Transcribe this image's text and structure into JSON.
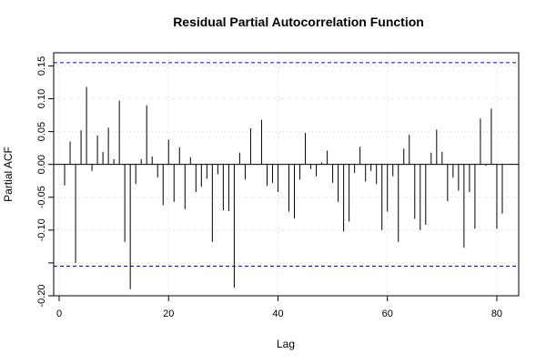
{
  "chart_data": {
    "type": "bar",
    "title": "Residual Partial Autocorrelation Function",
    "xlabel": "Lag",
    "ylabel": "Partial ACF",
    "xlim": [
      -1,
      84
    ],
    "ylim": [
      -0.2,
      0.17
    ],
    "x_ticks": [
      0,
      20,
      40,
      60,
      80
    ],
    "x_tick_labels": [
      "0",
      "20",
      "40",
      "60",
      "80"
    ],
    "y_ticks": [
      -0.2,
      -0.15,
      -0.1,
      -0.05,
      0.0,
      0.05,
      0.1,
      0.15
    ],
    "y_tick_labels": [
      "-0.20",
      "",
      "-0.10",
      "-0.05",
      "0.00",
      "0.05",
      "0.10",
      "0.15"
    ],
    "grid": true,
    "confidence_band": [
      -0.155,
      0.155
    ],
    "colors": {
      "bars": "#000000",
      "confidence": "#0000ff",
      "grid": "#d3d3d3",
      "zero_line": "#000000"
    },
    "lags": [
      1,
      2,
      3,
      4,
      5,
      6,
      7,
      8,
      9,
      10,
      11,
      12,
      13,
      14,
      15,
      16,
      17,
      18,
      19,
      20,
      21,
      22,
      23,
      24,
      25,
      26,
      27,
      28,
      29,
      30,
      31,
      32,
      33,
      34,
      35,
      36,
      37,
      38,
      39,
      40,
      41,
      42,
      43,
      44,
      45,
      46,
      47,
      48,
      49,
      50,
      51,
      52,
      53,
      54,
      55,
      56,
      57,
      58,
      59,
      60,
      61,
      62,
      63,
      64,
      65,
      66,
      67,
      68,
      69,
      70,
      71,
      72,
      73,
      74,
      75,
      76,
      77,
      78,
      79,
      80,
      81
    ],
    "values": [
      -0.032,
      0.035,
      -0.15,
      0.052,
      0.118,
      -0.01,
      0.044,
      0.019,
      0.056,
      0.008,
      0.097,
      -0.118,
      -0.19,
      -0.03,
      0.008,
      0.09,
      0.012,
      -0.02,
      -0.062,
      0.038,
      -0.057,
      0.026,
      -0.068,
      0.011,
      -0.042,
      -0.034,
      -0.022,
      -0.118,
      -0.015,
      -0.07,
      -0.071,
      -0.188,
      0.018,
      -0.023,
      0.055,
      0.0,
      0.068,
      -0.033,
      -0.028,
      -0.042,
      0.0,
      -0.072,
      -0.082,
      -0.023,
      0.048,
      -0.007,
      -0.018,
      0.003,
      0.021,
      -0.028,
      -0.057,
      -0.102,
      -0.087,
      -0.013,
      0.027,
      -0.026,
      -0.01,
      -0.03,
      -0.1,
      -0.072,
      -0.018,
      -0.118,
      0.024,
      0.045,
      -0.083,
      -0.1,
      -0.092,
      0.018,
      0.053,
      0.019,
      -0.056,
      -0.02,
      -0.04,
      -0.127,
      -0.042,
      -0.098,
      0.07,
      -0.002,
      0.085,
      -0.098,
      -0.075
    ]
  }
}
